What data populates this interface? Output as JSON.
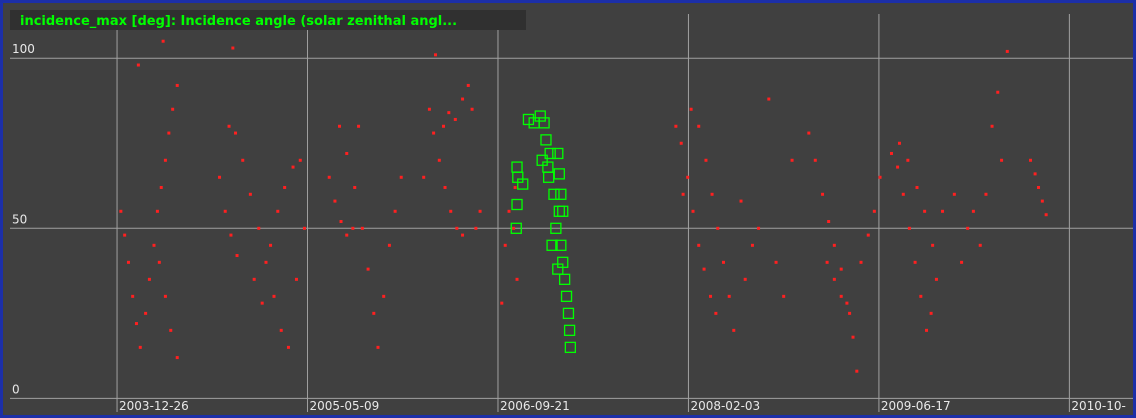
{
  "chart_data": {
    "type": "scatter",
    "title": "incidence_max [deg]: Incidence angle (solar zenithal angl...",
    "xlim": [
      "2003-03-20",
      "2011-04-15"
    ],
    "xticks": [
      "2003-12-26",
      "2005-05-09",
      "2006-09-21",
      "2008-02-03",
      "2009-06-17",
      {
        "value": "2010-10-30",
        "label": "2010-10-"
      }
    ],
    "ylim": [
      -4,
      113
    ],
    "yticks": [
      0,
      50,
      100
    ],
    "grid": true,
    "series": [
      {
        "color": "#ff2020",
        "marker": "dot",
        "x": [
          "2004-01-05",
          "2004-01-15",
          "2004-01-25",
          "2004-02-05",
          "2004-02-15",
          "2004-02-25",
          "2004-03-10",
          "2004-03-20",
          "2004-04-01",
          "2004-04-10",
          "2004-04-20",
          "2004-05-01",
          "2004-05-10",
          "2004-05-20",
          "2004-06-01",
          "2004-02-20",
          "2004-04-25",
          "2004-04-15",
          "2004-05-01",
          "2004-05-15",
          "2004-06-01",
          "2004-09-20",
          "2004-10-05",
          "2004-10-20",
          "2004-11-05",
          "2004-10-15",
          "2004-11-01",
          "2004-11-20",
          "2004-12-10",
          "2005-01-01",
          "2005-01-20",
          "2005-02-10",
          "2005-03-01",
          "2005-03-20",
          "2004-12-20",
          "2005-01-10",
          "2005-02-01",
          "2005-02-20",
          "2005-03-10",
          "2005-04-01",
          "2005-04-20",
          "2005-05-01",
          "2005-04-10",
          "2004-10-25",
          "2005-07-05",
          "2005-07-20",
          "2005-08-05",
          "2005-08-20",
          "2005-09-05",
          "2005-08-01",
          "2005-08-20",
          "2005-09-10",
          "2005-09-30",
          "2005-10-15",
          "2005-10-30",
          "2005-11-10",
          "2005-11-25",
          "2005-12-10",
          "2005-12-25",
          "2006-01-10",
          "2005-09-20",
          "2006-03-10",
          "2006-03-25",
          "2006-04-10",
          "2006-04-05",
          "2006-04-20",
          "2006-05-05",
          "2006-05-20",
          "2006-06-05",
          "2006-06-20",
          "2006-05-01",
          "2006-05-15",
          "2006-06-01",
          "2006-06-20",
          "2006-07-05",
          "2006-07-15",
          "2006-07-25",
          "2006-08-05",
          "2006-10-01",
          "2006-10-10",
          "2006-10-20",
          "2006-11-01",
          "2006-11-10",
          "2006-11-05",
          "2008-01-01",
          "2008-01-15",
          "2008-02-01",
          "2008-02-15",
          "2008-03-01",
          "2008-03-15",
          "2008-04-01",
          "2008-04-15",
          "2008-02-10",
          "2008-03-01",
          "2008-03-20",
          "2008-04-05",
          "2008-04-20",
          "2008-05-05",
          "2008-05-20",
          "2008-01-20",
          "2008-06-01",
          "2008-07-01",
          "2008-07-20",
          "2008-08-05",
          "2008-09-01",
          "2008-09-20",
          "2008-10-10",
          "2008-06-20",
          "2008-11-01",
          "2008-12-15",
          "2009-01-01",
          "2009-01-20",
          "2009-02-05",
          "2009-02-20",
          "2009-03-10",
          "2009-03-25",
          "2009-04-10",
          "2009-04-20",
          "2009-02-01",
          "2009-02-20",
          "2009-03-10",
          "2009-04-01",
          "2009-05-01",
          "2009-05-20",
          "2009-06-05",
          "2009-06-20",
          "2009-07-20",
          "2009-08-05",
          "2009-08-20",
          "2009-09-05",
          "2009-09-20",
          "2009-10-05",
          "2009-10-20",
          "2009-11-01",
          "2009-11-15",
          "2009-08-10",
          "2009-09-01",
          "2009-09-25",
          "2009-10-15",
          "2009-11-05",
          "2009-12-01",
          "2010-01-01",
          "2010-01-20",
          "2010-02-05",
          "2010-02-20",
          "2010-03-10",
          "2010-03-25",
          "2010-04-10",
          "2010-04-25",
          "2010-05-05",
          "2010-05-20",
          "2010-07-20",
          "2010-08-01",
          "2010-08-10",
          "2010-08-20",
          "2010-08-30"
        ],
        "values": [
          55,
          48,
          40,
          30,
          22,
          15,
          25,
          35,
          45,
          55,
          62,
          70,
          78,
          85,
          92,
          98,
          105,
          40,
          30,
          20,
          12,
          65,
          55,
          48,
          42,
          80,
          78,
          70,
          60,
          50,
          40,
          30,
          20,
          15,
          35,
          28,
          45,
          55,
          62,
          68,
          70,
          50,
          35,
          103,
          65,
          58,
          52,
          48,
          50,
          80,
          72,
          62,
          50,
          38,
          25,
          15,
          30,
          45,
          55,
          65,
          80,
          65,
          85,
          101,
          78,
          70,
          62,
          55,
          50,
          48,
          80,
          84,
          82,
          88,
          92,
          85,
          50,
          55,
          28,
          45,
          55,
          50,
          35,
          62,
          80,
          75,
          65,
          55,
          45,
          38,
          30,
          25,
          85,
          80,
          70,
          60,
          50,
          40,
          30,
          60,
          20,
          35,
          45,
          50,
          88,
          40,
          30,
          58,
          70,
          78,
          70,
          60,
          52,
          45,
          38,
          28,
          18,
          8,
          40,
          35,
          30,
          25,
          40,
          48,
          55,
          65,
          72,
          68,
          60,
          50,
          40,
          30,
          20,
          25,
          35,
          75,
          70,
          62,
          55,
          45,
          55,
          60,
          40,
          50,
          55,
          45,
          60,
          80,
          90,
          70,
          102,
          70,
          66,
          62,
          58,
          54
        ]
      },
      {
        "color": "#00ff00",
        "marker": "square",
        "x": [
          "2006-11-10",
          "2006-11-12",
          "2006-11-10",
          "2006-11-08",
          "2006-11-25",
          "2006-12-10",
          "2006-12-25",
          "2007-01-10",
          "2007-01-20",
          "2007-01-25",
          "2007-02-05",
          "2007-01-15",
          "2007-02-01",
          "2007-02-15",
          "2007-03-01",
          "2007-01-30",
          "2007-02-20",
          "2007-03-05",
          "2007-03-10",
          "2007-03-15",
          "2007-03-20",
          "2007-03-25",
          "2007-03-28",
          "2007-03-30",
          "2007-02-25",
          "2007-03-01",
          "2007-03-05",
          "2007-03-10",
          "2007-02-10",
          "2007-02-25"
        ],
        "values": [
          68,
          65,
          57,
          50,
          63,
          82,
          81,
          83,
          81,
          76,
          72,
          70,
          65,
          60,
          55,
          68,
          50,
          45,
          40,
          35,
          30,
          25,
          20,
          15,
          72,
          66,
          60,
          55,
          45,
          38
        ]
      }
    ]
  }
}
